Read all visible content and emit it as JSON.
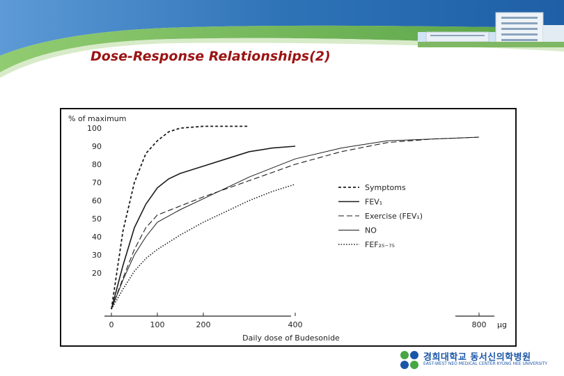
{
  "slide": {
    "title": "Dose-Response Relationships(2)"
  },
  "colors": {
    "title": "#9b1414",
    "banner_blue": "#2f73b7",
    "banner_green": "#5fae45",
    "logo_blue": "#1a56a8",
    "logo_green": "#47a743"
  },
  "chart_data": {
    "type": "line",
    "ylabel": "% of maximum",
    "xlabel": "Daily dose of Budesonide",
    "x_unit": "µg",
    "x_ticks": [
      "0",
      "100",
      "200",
      "400",
      "800"
    ],
    "y_ticks": [
      "20",
      "30",
      "40",
      "50",
      "60",
      "70",
      "80",
      "90",
      "100"
    ],
    "xlim": [
      0,
      800
    ],
    "ylim": [
      0,
      100
    ],
    "grid": false,
    "legend_position": "right",
    "series": [
      {
        "name": "Symptoms",
        "style": "dashed",
        "x": [
          0,
          25,
          50,
          75,
          100,
          125,
          150,
          200,
          250,
          300
        ],
        "y": [
          0,
          43,
          70,
          86,
          93,
          98,
          100,
          101,
          101,
          101
        ]
      },
      {
        "name": "FEV₁",
        "style": "solid",
        "x": [
          0,
          25,
          50,
          75,
          100,
          125,
          150,
          200,
          250,
          300,
          350,
          400
        ],
        "y": [
          0,
          24,
          45,
          58,
          67,
          72,
          75,
          79,
          83,
          87,
          89,
          90
        ]
      },
      {
        "name": "Exercise (FEV₁)",
        "style": "longdash",
        "x": [
          0,
          25,
          50,
          75,
          100,
          150,
          200,
          300,
          400,
          500,
          600,
          700,
          800
        ],
        "y": [
          0,
          17,
          33,
          45,
          52,
          57,
          62,
          71,
          80,
          87,
          92,
          94,
          95
        ]
      },
      {
        "name": "NO",
        "style": "thin",
        "x": [
          0,
          25,
          50,
          75,
          100,
          150,
          200,
          300,
          400,
          500,
          600,
          700,
          800
        ],
        "y": [
          0,
          16,
          30,
          40,
          48,
          55,
          61,
          73,
          83,
          89,
          93,
          94,
          95
        ]
      },
      {
        "name": "FEF₂₅₋₇₅",
        "style": "dotted",
        "x": [
          0,
          25,
          50,
          75,
          100,
          150,
          200,
          250,
          300,
          350,
          400
        ],
        "y": [
          0,
          11,
          21,
          28,
          33,
          41,
          48,
          54,
          60,
          65,
          69
        ]
      }
    ]
  },
  "footer": {
    "logo_line1": "경희대학교 동서신의학병원",
    "logo_line2": "EAST-WEST NEO MEDICAL CENTER KYUNG HEE UNIVERSITY"
  }
}
